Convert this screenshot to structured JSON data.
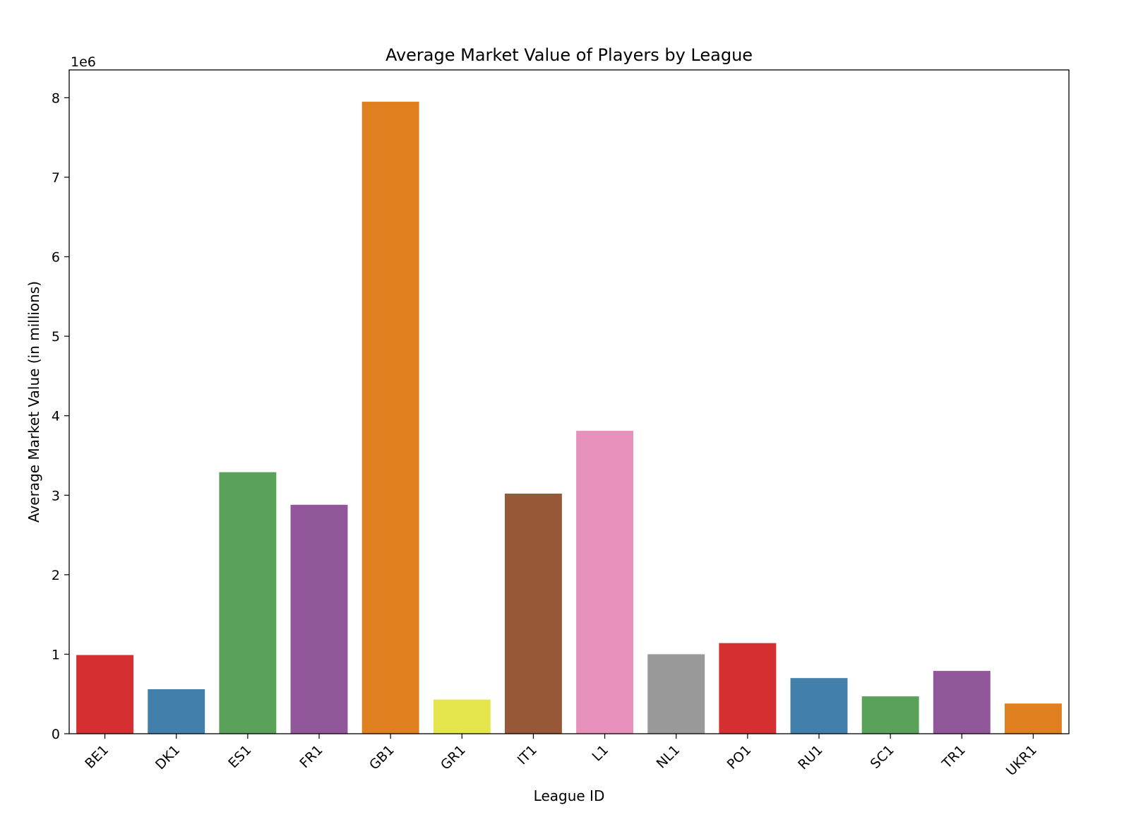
{
  "chart_data": {
    "type": "bar",
    "title": "Average Market Value of Players by League",
    "xlabel": "League ID",
    "ylabel": "Average Market Value (in millions)",
    "y_offset_text": "1e6",
    "categories": [
      "BE1",
      "DK1",
      "ES1",
      "FR1",
      "GB1",
      "GR1",
      "IT1",
      "L1",
      "NL1",
      "PO1",
      "RU1",
      "SC1",
      "TR1",
      "UKR1"
    ],
    "values": [
      990000,
      560000,
      3290000,
      2880000,
      7950000,
      430000,
      3020000,
      3810000,
      1000000,
      1140000,
      700000,
      470000,
      790000,
      380000
    ],
    "colors": [
      "#d62f32",
      "#437fab",
      "#5aa259",
      "#92579a",
      "#df7f20",
      "#e5e54d",
      "#965837",
      "#e891bc",
      "#999999",
      "#d62f32",
      "#437fab",
      "#5aa259",
      "#92579a",
      "#df7f20"
    ],
    "y_ticks": [
      0,
      1,
      2,
      3,
      4,
      5,
      6,
      7,
      8
    ],
    "ylim": [
      0,
      8350000
    ],
    "grid": false,
    "legend": false
  }
}
